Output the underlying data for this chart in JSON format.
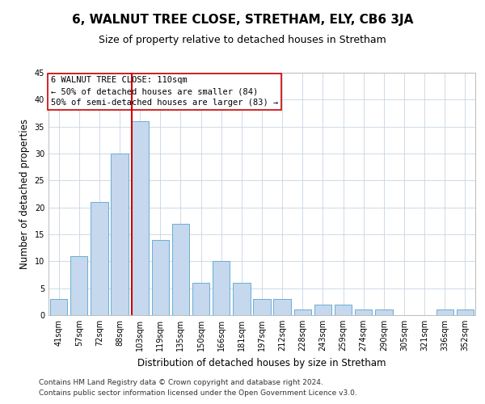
{
  "title": "6, WALNUT TREE CLOSE, STRETHAM, ELY, CB6 3JA",
  "subtitle": "Size of property relative to detached houses in Stretham",
  "xlabel": "Distribution of detached houses by size in Stretham",
  "ylabel": "Number of detached properties",
  "categories": [
    "41sqm",
    "57sqm",
    "72sqm",
    "88sqm",
    "103sqm",
    "119sqm",
    "135sqm",
    "150sqm",
    "166sqm",
    "181sqm",
    "197sqm",
    "212sqm",
    "228sqm",
    "243sqm",
    "259sqm",
    "274sqm",
    "290sqm",
    "305sqm",
    "321sqm",
    "336sqm",
    "352sqm"
  ],
  "values": [
    3,
    11,
    21,
    30,
    36,
    14,
    17,
    6,
    10,
    6,
    3,
    3,
    1,
    2,
    2,
    1,
    1,
    0,
    0,
    1,
    1
  ],
  "bar_color": "#c5d8ed",
  "bar_edge_color": "#6aaed6",
  "grid_color": "#c8d4e3",
  "vline_color": "#cc0000",
  "vline_x_index": 4,
  "annotation_box_text": "6 WALNUT TREE CLOSE: 110sqm\n← 50% of detached houses are smaller (84)\n50% of semi-detached houses are larger (83) →",
  "annotation_box_color": "#cc0000",
  "footnote1": "Contains HM Land Registry data © Crown copyright and database right 2024.",
  "footnote2": "Contains public sector information licensed under the Open Government Licence v3.0.",
  "ylim": [
    0,
    45
  ],
  "yticks": [
    0,
    5,
    10,
    15,
    20,
    25,
    30,
    35,
    40,
    45
  ],
  "title_fontsize": 11,
  "subtitle_fontsize": 9,
  "xlabel_fontsize": 8.5,
  "ylabel_fontsize": 8.5,
  "tick_fontsize": 7,
  "annotation_fontsize": 7.5,
  "footnote_fontsize": 6.5
}
